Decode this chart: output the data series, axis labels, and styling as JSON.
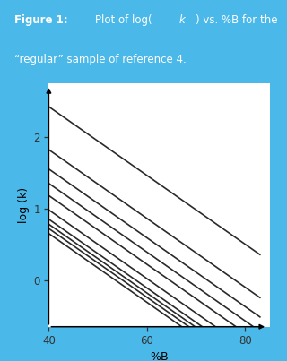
{
  "title_bold": "Figure 1:",
  "title_normal": "Plot of log(k) vs. %B for the “regular” sample of reference 4.",
  "title_italic_word": "k",
  "header_bg": "#4ab8e8",
  "header_text_color": "#ffffff",
  "plot_bg": "#ffffff",
  "border_color": "#4ab8e8",
  "line_color": "#2a2a2a",
  "xlabel": "%B",
  "ylabel": "log (k)",
  "xlim": [
    40,
    85
  ],
  "ylim": [
    -0.65,
    2.75
  ],
  "xticks": [
    40,
    60,
    80
  ],
  "yticks": [
    0,
    1,
    2
  ],
  "lines_y0": [
    2.42,
    1.82,
    1.55,
    1.35,
    1.18,
    0.98,
    0.85,
    0.78,
    0.72,
    0.65
  ],
  "slope": -0.048,
  "x_start": 40,
  "x_end": 83,
  "line_width": 1.2,
  "fig_width": 3.2,
  "fig_height": 4.03,
  "dpi": 100
}
